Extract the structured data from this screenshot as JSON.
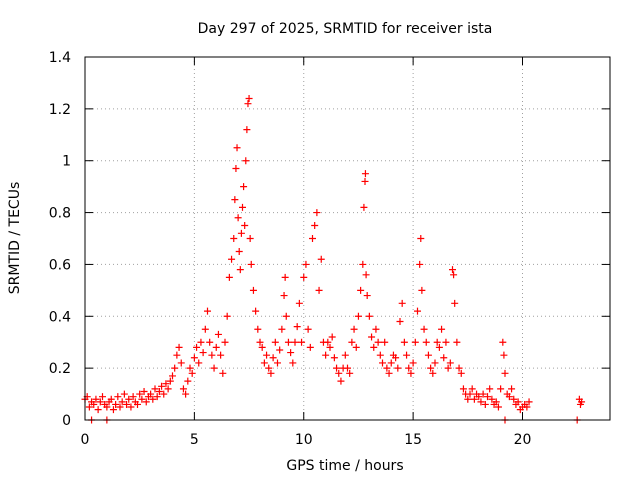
{
  "chart_data": {
    "type": "scatter",
    "title": "Day 297 of 2025, SRMTID for receiver ista",
    "xlabel": "GPS time / hours",
    "ylabel": "SRMTID / TECUs",
    "xlim": [
      0,
      24
    ],
    "ylim": [
      0,
      1.4
    ],
    "grid": true,
    "x_ticks": [
      0,
      5,
      10,
      15,
      20
    ],
    "x_tick_labels": [
      "0",
      "5",
      "10",
      "15",
      "20"
    ],
    "y_ticks": [
      0,
      0.2,
      0.4,
      0.6,
      0.8,
      1.0,
      1.2,
      1.4
    ],
    "y_tick_labels": [
      "0",
      "0.2",
      "0.4",
      "0.6",
      "0.8",
      "1",
      "1.2",
      "1.4"
    ],
    "marker": "plus",
    "color": "#ff0000",
    "series": [
      {
        "name": "SRMTID",
        "points": [
          [
            0.0,
            0.08
          ],
          [
            0.1,
            0.09
          ],
          [
            0.2,
            0.05
          ],
          [
            0.3,
            0.07
          ],
          [
            0.4,
            0.06
          ],
          [
            0.5,
            0.08
          ],
          [
            0.6,
            0.04
          ],
          [
            0.7,
            0.07
          ],
          [
            0.8,
            0.09
          ],
          [
            0.9,
            0.06
          ],
          [
            1.0,
            0.05
          ],
          [
            1.1,
            0.07
          ],
          [
            1.2,
            0.08
          ],
          [
            1.3,
            0.04
          ],
          [
            1.4,
            0.06
          ],
          [
            1.5,
            0.09
          ],
          [
            1.6,
            0.05
          ],
          [
            1.7,
            0.07
          ],
          [
            1.8,
            0.1
          ],
          [
            1.9,
            0.06
          ],
          [
            2.0,
            0.08
          ],
          [
            2.1,
            0.05
          ],
          [
            2.2,
            0.09
          ],
          [
            2.3,
            0.07
          ],
          [
            2.4,
            0.06
          ],
          [
            2.5,
            0.1
          ],
          [
            2.6,
            0.08
          ],
          [
            2.7,
            0.11
          ],
          [
            2.8,
            0.07
          ],
          [
            2.9,
            0.09
          ],
          [
            3.0,
            0.1
          ],
          [
            3.1,
            0.08
          ],
          [
            3.2,
            0.12
          ],
          [
            3.3,
            0.09
          ],
          [
            3.4,
            0.11
          ],
          [
            3.5,
            0.13
          ],
          [
            3.6,
            0.1
          ],
          [
            3.7,
            0.14
          ],
          [
            3.8,
            0.12
          ],
          [
            3.9,
            0.15
          ],
          [
            4.0,
            0.17
          ],
          [
            4.1,
            0.2
          ],
          [
            4.2,
            0.25
          ],
          [
            4.3,
            0.28
          ],
          [
            4.4,
            0.22
          ],
          [
            4.5,
            0.12
          ],
          [
            4.6,
            0.1
          ],
          [
            4.7,
            0.15
          ],
          [
            4.8,
            0.2
          ],
          [
            4.9,
            0.18
          ],
          [
            5.0,
            0.24
          ],
          [
            5.1,
            0.28
          ],
          [
            5.2,
            0.22
          ],
          [
            5.3,
            0.3
          ],
          [
            5.4,
            0.26
          ],
          [
            5.5,
            0.35
          ],
          [
            5.6,
            0.42
          ],
          [
            5.7,
            0.3
          ],
          [
            5.8,
            0.25
          ],
          [
            5.9,
            0.2
          ],
          [
            6.0,
            0.28
          ],
          [
            6.1,
            0.33
          ],
          [
            6.2,
            0.25
          ],
          [
            6.3,
            0.18
          ],
          [
            6.4,
            0.3
          ],
          [
            6.5,
            0.4
          ],
          [
            6.6,
            0.55
          ],
          [
            6.7,
            0.62
          ],
          [
            6.8,
            0.7
          ],
          [
            6.85,
            0.85
          ],
          [
            6.9,
            0.97
          ],
          [
            6.95,
            1.05
          ],
          [
            7.0,
            0.78
          ],
          [
            7.05,
            0.65
          ],
          [
            7.1,
            0.58
          ],
          [
            7.15,
            0.72
          ],
          [
            7.2,
            0.82
          ],
          [
            7.25,
            0.9
          ],
          [
            7.3,
            0.75
          ],
          [
            7.35,
            1.0
          ],
          [
            7.4,
            1.12
          ],
          [
            7.45,
            1.22
          ],
          [
            7.5,
            1.24
          ],
          [
            7.55,
            0.7
          ],
          [
            7.6,
            0.6
          ],
          [
            7.7,
            0.5
          ],
          [
            7.8,
            0.42
          ],
          [
            7.9,
            0.35
          ],
          [
            8.0,
            0.3
          ],
          [
            8.1,
            0.28
          ],
          [
            8.2,
            0.22
          ],
          [
            8.3,
            0.25
          ],
          [
            8.4,
            0.2
          ],
          [
            8.5,
            0.18
          ],
          [
            8.6,
            0.24
          ],
          [
            8.7,
            0.3
          ],
          [
            8.8,
            0.22
          ],
          [
            8.9,
            0.27
          ],
          [
            9.0,
            0.35
          ],
          [
            9.1,
            0.48
          ],
          [
            9.15,
            0.55
          ],
          [
            9.2,
            0.4
          ],
          [
            9.3,
            0.3
          ],
          [
            9.4,
            0.26
          ],
          [
            9.5,
            0.22
          ],
          [
            9.6,
            0.3
          ],
          [
            9.7,
            0.36
          ],
          [
            9.8,
            0.45
          ],
          [
            9.9,
            0.3
          ],
          [
            10.0,
            0.55
          ],
          [
            10.1,
            0.6
          ],
          [
            10.2,
            0.35
          ],
          [
            10.3,
            0.28
          ],
          [
            10.4,
            0.7
          ],
          [
            10.5,
            0.75
          ],
          [
            10.6,
            0.8
          ],
          [
            10.7,
            0.5
          ],
          [
            10.8,
            0.62
          ],
          [
            10.9,
            0.3
          ],
          [
            11.0,
            0.25
          ],
          [
            11.1,
            0.3
          ],
          [
            11.2,
            0.28
          ],
          [
            11.3,
            0.32
          ],
          [
            11.4,
            0.24
          ],
          [
            11.5,
            0.2
          ],
          [
            11.6,
            0.18
          ],
          [
            11.7,
            0.15
          ],
          [
            11.8,
            0.2
          ],
          [
            11.9,
            0.25
          ],
          [
            12.0,
            0.2
          ],
          [
            12.1,
            0.18
          ],
          [
            12.2,
            0.3
          ],
          [
            12.3,
            0.35
          ],
          [
            12.4,
            0.28
          ],
          [
            12.5,
            0.4
          ],
          [
            12.6,
            0.5
          ],
          [
            12.7,
            0.6
          ],
          [
            12.75,
            0.82
          ],
          [
            12.8,
            0.92
          ],
          [
            12.82,
            0.95
          ],
          [
            12.85,
            0.56
          ],
          [
            12.9,
            0.48
          ],
          [
            13.0,
            0.4
          ],
          [
            13.1,
            0.32
          ],
          [
            13.2,
            0.28
          ],
          [
            13.3,
            0.35
          ],
          [
            13.4,
            0.3
          ],
          [
            13.5,
            0.25
          ],
          [
            13.6,
            0.22
          ],
          [
            13.7,
            0.3
          ],
          [
            13.8,
            0.2
          ],
          [
            13.9,
            0.18
          ],
          [
            14.0,
            0.22
          ],
          [
            14.1,
            0.25
          ],
          [
            14.2,
            0.24
          ],
          [
            14.3,
            0.2
          ],
          [
            14.4,
            0.38
          ],
          [
            14.5,
            0.45
          ],
          [
            14.6,
            0.3
          ],
          [
            14.7,
            0.25
          ],
          [
            14.8,
            0.2
          ],
          [
            14.9,
            0.18
          ],
          [
            15.0,
            0.22
          ],
          [
            15.1,
            0.3
          ],
          [
            15.2,
            0.42
          ],
          [
            15.3,
            0.6
          ],
          [
            15.35,
            0.7
          ],
          [
            15.4,
            0.5
          ],
          [
            15.5,
            0.35
          ],
          [
            15.6,
            0.3
          ],
          [
            15.7,
            0.25
          ],
          [
            15.8,
            0.2
          ],
          [
            15.9,
            0.18
          ],
          [
            16.0,
            0.22
          ],
          [
            16.1,
            0.3
          ],
          [
            16.2,
            0.28
          ],
          [
            16.3,
            0.35
          ],
          [
            16.4,
            0.24
          ],
          [
            16.5,
            0.3
          ],
          [
            16.6,
            0.2
          ],
          [
            16.7,
            0.22
          ],
          [
            16.8,
            0.58
          ],
          [
            16.85,
            0.56
          ],
          [
            16.9,
            0.45
          ],
          [
            17.0,
            0.3
          ],
          [
            17.1,
            0.2
          ],
          [
            17.2,
            0.18
          ],
          [
            17.3,
            0.12
          ],
          [
            17.4,
            0.1
          ],
          [
            17.5,
            0.08
          ],
          [
            17.6,
            0.1
          ],
          [
            17.7,
            0.12
          ],
          [
            17.8,
            0.08
          ],
          [
            17.9,
            0.1
          ],
          [
            18.0,
            0.09
          ],
          [
            18.1,
            0.07
          ],
          [
            18.2,
            0.1
          ],
          [
            18.3,
            0.06
          ],
          [
            18.4,
            0.09
          ],
          [
            18.5,
            0.12
          ],
          [
            18.6,
            0.08
          ],
          [
            18.7,
            0.06
          ],
          [
            18.8,
            0.07
          ],
          [
            18.9,
            0.05
          ],
          [
            19.0,
            0.12
          ],
          [
            19.1,
            0.3
          ],
          [
            19.15,
            0.25
          ],
          [
            19.2,
            0.18
          ],
          [
            19.3,
            0.1
          ],
          [
            19.4,
            0.09
          ],
          [
            19.5,
            0.12
          ],
          [
            19.6,
            0.08
          ],
          [
            19.7,
            0.06
          ],
          [
            19.8,
            0.07
          ],
          [
            19.9,
            0.04
          ],
          [
            20.0,
            0.05
          ],
          [
            20.1,
            0.06
          ],
          [
            20.2,
            0.05
          ],
          [
            20.3,
            0.07
          ],
          [
            22.6,
            0.08
          ],
          [
            22.65,
            0.06
          ],
          [
            22.7,
            0.07
          ],
          [
            0.3,
            0.0
          ],
          [
            1.0,
            0.0
          ],
          [
            19.2,
            0.0
          ],
          [
            22.5,
            0.0
          ]
        ]
      }
    ]
  }
}
